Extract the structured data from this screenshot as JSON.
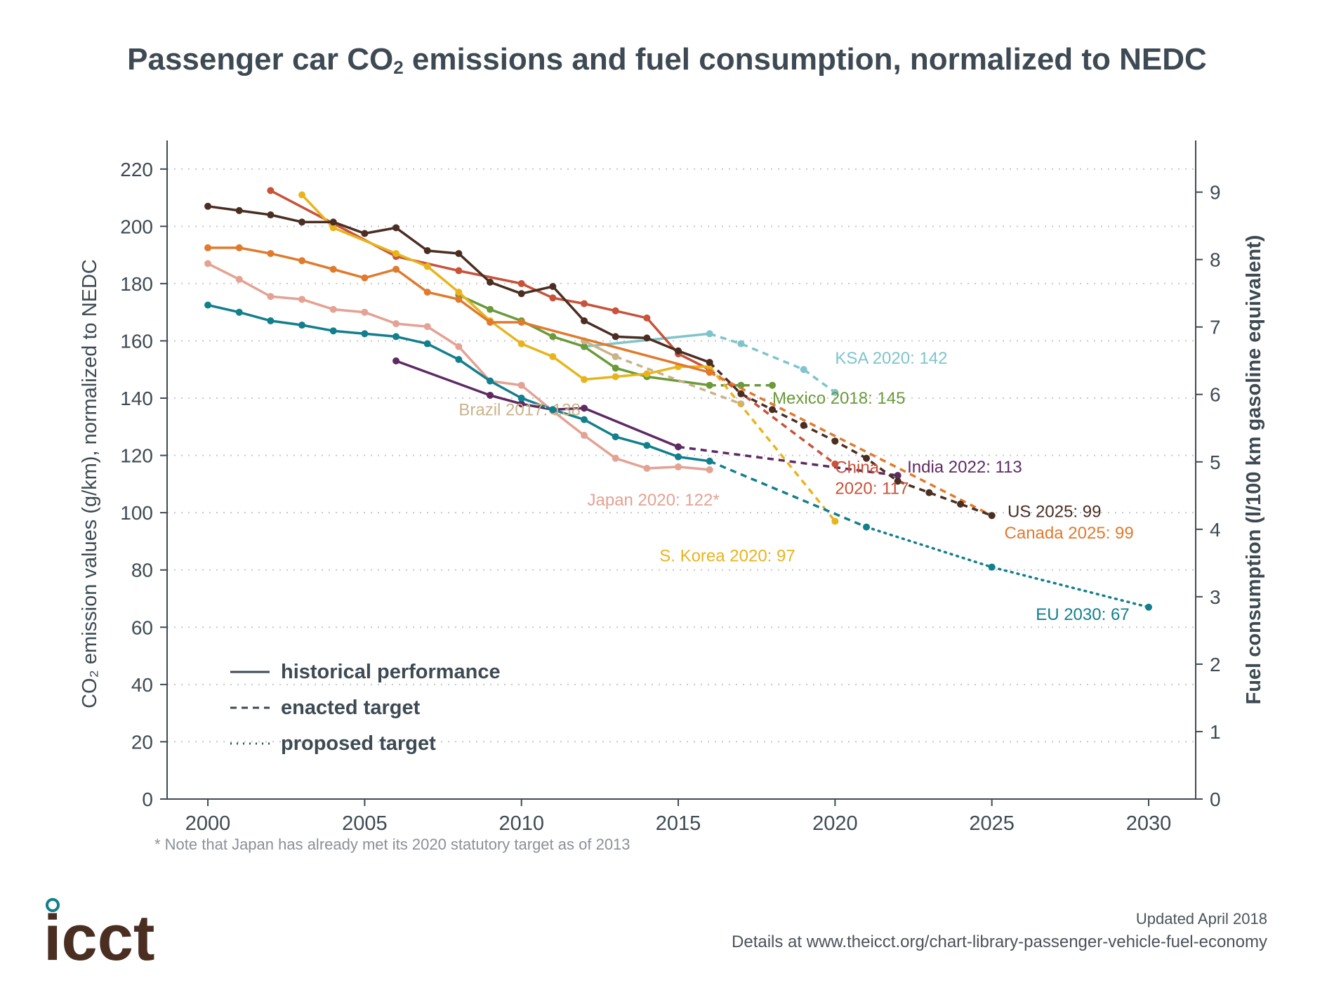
{
  "title_main": "Passenger car CO",
  "title_sub": "2",
  "title_rest": " emissions and fuel consumption, normalized to NEDC",
  "footnote": "* Note that Japan has already met its 2020 statutory target as of 2013",
  "footer": {
    "logo": "icct",
    "updated": "Updated April 2018",
    "details": "Details at www.theicct.org/chart-library-passenger-vehicle-fuel-economy"
  },
  "chart_data": {
    "type": "line",
    "ylabel_left": "CO₂ emission values (g/km), normalized to NEDC",
    "ylabel_right": "Fuel consumption (l/100 km gasoline equivalent)",
    "xlim": [
      1998.7,
      2031.5
    ],
    "ylim": [
      0,
      230
    ],
    "x_ticks": [
      2000,
      2005,
      2010,
      2015,
      2020,
      2025,
      2030
    ],
    "y_ticks_left": [
      0,
      20,
      40,
      60,
      80,
      100,
      120,
      140,
      160,
      180,
      200,
      220
    ],
    "y_ticks_right": [
      0,
      1,
      2,
      3,
      4,
      5,
      6,
      7,
      8,
      9
    ],
    "right_axis_scale": 23.55,
    "grid": "horizontal-dotted",
    "legend": {
      "position": "bottom-left",
      "items": [
        {
          "style": "solid",
          "label": "historical performance"
        },
        {
          "style": "dashed",
          "label": "enacted target"
        },
        {
          "style": "dotted",
          "label": "proposed target"
        }
      ]
    },
    "series": [
      {
        "name": "KSA",
        "label": "KSA 2020: 142",
        "color": "#7fc4cc",
        "historical": [
          [
            2012,
            158
          ],
          [
            2016,
            162.5
          ]
        ],
        "enacted": [
          [
            2016,
            162.5
          ],
          [
            2017,
            159
          ],
          [
            2019,
            150
          ],
          [
            2020,
            142
          ]
        ],
        "label_at": [
          2020,
          152
        ]
      },
      {
        "name": "Mexico",
        "label": "Mexico 2018: 145",
        "color": "#6a9a3a",
        "historical": [
          [
            2008,
            176
          ],
          [
            2009,
            171
          ],
          [
            2010,
            167
          ],
          [
            2011,
            161.5
          ],
          [
            2012,
            158
          ],
          [
            2013,
            150.5
          ],
          [
            2014,
            147.5
          ],
          [
            2016,
            144.5
          ]
        ],
        "enacted": [
          [
            2016,
            144.5
          ],
          [
            2017,
            144.5
          ],
          [
            2018,
            144.5
          ]
        ],
        "label_at": [
          2018,
          138
        ]
      },
      {
        "name": "Brazil",
        "label": "Brazil 2017: 138",
        "color": "#c9b38a",
        "historical": [
          [
            2012,
            160
          ],
          [
            2013,
            154.5
          ]
        ],
        "enacted": [
          [
            2013,
            154.5
          ],
          [
            2017,
            138
          ]
        ],
        "label_at": [
          2008,
          134
        ]
      },
      {
        "name": "Japan",
        "label": "Japan 2020: 122*",
        "color": "#e3a294",
        "historical": [
          [
            2000,
            187
          ],
          [
            2001,
            181.5
          ],
          [
            2002,
            175.5
          ],
          [
            2003,
            174.5
          ],
          [
            2004,
            171
          ],
          [
            2005,
            170
          ],
          [
            2006,
            166
          ],
          [
            2007,
            165
          ],
          [
            2008,
            158
          ],
          [
            2009,
            146
          ],
          [
            2010,
            144.5
          ],
          [
            2011,
            135.5
          ],
          [
            2012,
            127
          ],
          [
            2013,
            119
          ],
          [
            2014,
            115.5
          ],
          [
            2015,
            116
          ],
          [
            2016,
            115
          ]
        ],
        "enacted": [],
        "label_at": [
          2012.1,
          102.5
        ]
      },
      {
        "name": "India",
        "label": "India 2022: 113",
        "color": "#5e2a62",
        "historical": [
          [
            2006,
            153
          ],
          [
            2009,
            141
          ],
          [
            2010,
            138
          ],
          [
            2011,
            136
          ],
          [
            2012,
            136.5
          ],
          [
            2015,
            123
          ]
        ],
        "enacted": [
          [
            2015,
            123
          ],
          [
            2022,
            113
          ]
        ],
        "label_at": [
          2022.3,
          114
        ]
      },
      {
        "name": "China",
        "label": "China 2020: 117",
        "color": "#c8523a",
        "historical": [
          [
            2002,
            212.5
          ],
          [
            2006,
            189.5
          ],
          [
            2008,
            184.5
          ],
          [
            2010,
            180
          ],
          [
            2011,
            175
          ],
          [
            2012,
            173
          ],
          [
            2013,
            170.5
          ],
          [
            2014,
            168
          ],
          [
            2015,
            155.5
          ],
          [
            2016,
            150
          ]
        ],
        "enacted": [
          [
            2016,
            150
          ],
          [
            2020,
            117
          ]
        ],
        "label_at": [
          2020,
          107
        ]
      },
      {
        "name": "S. Korea",
        "label": "S. Korea 2020: 97",
        "color": "#e8b41e",
        "historical": [
          [
            2003,
            211
          ],
          [
            2004,
            199.5
          ],
          [
            2006,
            190.5
          ],
          [
            2007,
            186
          ],
          [
            2008,
            177
          ],
          [
            2009,
            167
          ],
          [
            2010,
            159
          ],
          [
            2011,
            154.5
          ],
          [
            2012,
            146.5
          ],
          [
            2013,
            147.5
          ],
          [
            2014,
            148.5
          ],
          [
            2015,
            151
          ],
          [
            2016,
            151
          ]
        ],
        "enacted": [
          [
            2016,
            151
          ],
          [
            2020,
            97
          ]
        ],
        "label_at": [
          2014.4,
          83
        ]
      },
      {
        "name": "Canada",
        "label": "Canada 2025: 99",
        "color": "#e07a2c",
        "historical": [
          [
            2000,
            192.5
          ],
          [
            2001,
            192.5
          ],
          [
            2002,
            190.5
          ],
          [
            2003,
            188
          ],
          [
            2004,
            185
          ],
          [
            2005,
            182
          ],
          [
            2006,
            185
          ],
          [
            2007,
            177
          ],
          [
            2008,
            174.5
          ],
          [
            2009,
            166.5
          ],
          [
            2010,
            166.5
          ],
          [
            2016,
            149
          ]
        ],
        "enacted": [
          [
            2016,
            149
          ],
          [
            2025,
            99
          ]
        ],
        "label_at": [
          2025.4,
          91
        ]
      },
      {
        "name": "US",
        "label": "US 2025: 99",
        "color": "#4a2e22",
        "historical": [
          [
            2000,
            207
          ],
          [
            2001,
            205.5
          ],
          [
            2002,
            204
          ],
          [
            2003,
            201.5
          ],
          [
            2004,
            201.5
          ],
          [
            2005,
            197.5
          ],
          [
            2006,
            199.5
          ],
          [
            2007,
            191.5
          ],
          [
            2008,
            190.5
          ],
          [
            2009,
            180.5
          ],
          [
            2010,
            176.5
          ],
          [
            2011,
            179
          ],
          [
            2012,
            167
          ],
          [
            2013,
            161.5
          ],
          [
            2014,
            161
          ],
          [
            2015,
            156.5
          ],
          [
            2016,
            152.5
          ]
        ],
        "enacted": [
          [
            2016,
            152.5
          ],
          [
            2017,
            141.5
          ],
          [
            2018,
            136
          ],
          [
            2019,
            130.5
          ],
          [
            2020,
            125
          ],
          [
            2021,
            119
          ],
          [
            2022,
            111
          ],
          [
            2023,
            107
          ],
          [
            2024,
            103
          ],
          [
            2025,
            99
          ]
        ],
        "label_at": [
          2025.5,
          98.5
        ]
      },
      {
        "name": "EU",
        "label": "EU 2030: 67",
        "color": "#127f8c",
        "historical": [
          [
            2000,
            172.5
          ],
          [
            2001,
            170
          ],
          [
            2002,
            167
          ],
          [
            2003,
            165.5
          ],
          [
            2004,
            163.5
          ],
          [
            2005,
            162.5
          ],
          [
            2006,
            161.5
          ],
          [
            2007,
            159
          ],
          [
            2008,
            153.5
          ],
          [
            2009,
            146
          ],
          [
            2010,
            140
          ],
          [
            2011,
            136
          ],
          [
            2012,
            132.5
          ],
          [
            2013,
            126.5
          ],
          [
            2014,
            123.5
          ],
          [
            2015,
            119.5
          ],
          [
            2016,
            118
          ]
        ],
        "enacted": [
          [
            2016,
            118
          ],
          [
            2021,
            95
          ]
        ],
        "proposed": [
          [
            2021,
            95
          ],
          [
            2025,
            81
          ],
          [
            2030,
            67
          ]
        ],
        "label_at": [
          2026.4,
          62.5
        ]
      }
    ]
  }
}
